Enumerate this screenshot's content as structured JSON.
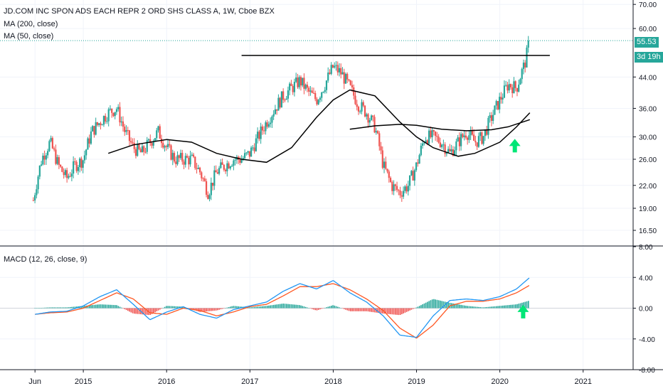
{
  "header": {
    "symbol_line": "JD.COM INC SPON ADS EACH REPR 2 ORD SHS CLASS A, 1W, Cboe BZX",
    "ma200_label": "MA (200, close)",
    "ma50_label": "MA (50, close)",
    "macd_label": "MACD (12, 26, close, 9)"
  },
  "price_tags": {
    "last_price": "55.53",
    "countdown": "3d 19h"
  },
  "colors": {
    "up": "#26a69a",
    "down": "#ef5350",
    "macd_line": "#2196f3",
    "signal_line": "#ff5722",
    "ma": "#000000",
    "arrow": "#00e676",
    "grid": "#f0f3fa",
    "axis": "#131722",
    "dotted": "#26a69a"
  },
  "icons": [
    "up-arrow-icon"
  ],
  "chart_data": [
    {
      "type": "line",
      "panel": "price",
      "scale": "log",
      "ylim": [
        15,
        72
      ],
      "y_ticks": [
        "70.00",
        "60.00",
        "55.53",
        "44.00",
        "36.00",
        "30.00",
        "26.00",
        "22.00",
        "19.00",
        "16.50"
      ],
      "y_tick_values": [
        70,
        60,
        55.53,
        44,
        36,
        30,
        26,
        22,
        19,
        16.5
      ],
      "x_ticks": [
        "Jun",
        "2015",
        "2016",
        "2017",
        "2018",
        "2019",
        "2020",
        "2021"
      ],
      "x_tick_values": [
        2014.42,
        2015.0,
        2016.0,
        2017.0,
        2018.0,
        2019.0,
        2020.0,
        2021.0
      ],
      "xlim": [
        2014.0,
        2021.6
      ],
      "series": [
        {
          "name": "JD.COM INC SPON ADS EACH REPR 2 ORD SHS CLASS A, 1W, Cboe BZX",
          "style": "candles",
          "x": [
            2014.4,
            2014.5,
            2014.6,
            2014.7,
            2014.8,
            2014.9,
            2015.0,
            2015.1,
            2015.2,
            2015.3,
            2015.4,
            2015.5,
            2015.6,
            2015.7,
            2015.8,
            2015.9,
            2016.0,
            2016.1,
            2016.2,
            2016.3,
            2016.4,
            2016.5,
            2016.6,
            2016.7,
            2016.8,
            2016.9,
            2017.0,
            2017.1,
            2017.2,
            2017.3,
            2017.4,
            2017.5,
            2017.6,
            2017.7,
            2017.8,
            2017.9,
            2018.0,
            2018.1,
            2018.2,
            2018.3,
            2018.4,
            2018.5,
            2018.6,
            2018.7,
            2018.8,
            2018.9,
            2019.0,
            2019.1,
            2019.2,
            2019.3,
            2019.4,
            2019.5,
            2019.6,
            2019.7,
            2019.8,
            2019.9,
            2020.0,
            2020.1,
            2020.2,
            2020.3,
            2020.36
          ],
          "close": [
            20,
            26,
            29,
            25,
            23,
            25,
            26,
            31,
            33,
            35,
            36,
            31,
            28,
            27,
            29,
            31,
            28,
            26,
            26,
            26,
            24,
            21,
            24,
            25,
            26,
            26,
            27,
            30,
            33,
            36,
            39,
            41,
            43,
            40,
            38,
            42,
            47,
            45,
            41,
            37,
            35,
            32,
            25,
            22,
            21,
            22,
            25,
            30,
            30,
            29,
            27,
            29,
            31,
            29,
            30,
            34,
            38,
            42,
            41,
            48,
            55.53
          ]
        },
        {
          "name": "MA (200, close)",
          "x": [
            2015.3,
            2015.6,
            2016.0,
            2016.3,
            2016.6,
            2016.9,
            2017.2,
            2017.5,
            2017.8,
            2018.0,
            2018.2,
            2018.5,
            2018.8,
            2019.0,
            2019.2,
            2019.5,
            2019.7,
            2020.0,
            2020.2,
            2020.36
          ],
          "values": [
            27.0,
            28.5,
            29.5,
            29.0,
            27.0,
            26.0,
            25.5,
            28.0,
            34.0,
            38.0,
            40.5,
            39.0,
            33.0,
            30.0,
            28.0,
            26.5,
            27.0,
            29.0,
            32.0,
            35.0
          ]
        },
        {
          "name": "MA (50, close)",
          "x": [
            2018.2,
            2018.5,
            2018.8,
            2019.0,
            2019.3,
            2019.6,
            2019.9,
            2020.1,
            2020.36
          ],
          "values": [
            31.5,
            32.2,
            32.5,
            32.3,
            31.5,
            31.2,
            31.4,
            32.0,
            33.5
          ]
        },
        {
          "name": "Resistance",
          "x": [
            2016.9,
            2020.6
          ],
          "values": [
            50.5,
            50.5
          ]
        }
      ],
      "annotations": [
        {
          "type": "up-arrow",
          "x": 2020.18,
          "y": 28.3
        }
      ]
    },
    {
      "type": "line",
      "panel": "macd",
      "ylim": [
        -8,
        8
      ],
      "y_ticks": [
        "8.00",
        "4.00",
        "0.00",
        "-4.00",
        "-8.00"
      ],
      "y_tick_values": [
        8,
        4,
        0,
        -4,
        -8
      ],
      "x": [
        2014.42,
        2014.6,
        2014.8,
        2015.0,
        2015.2,
        2015.4,
        2015.6,
        2015.8,
        2016.0,
        2016.2,
        2016.4,
        2016.6,
        2016.8,
        2017.0,
        2017.2,
        2017.4,
        2017.6,
        2017.8,
        2018.0,
        2018.2,
        2018.4,
        2018.6,
        2018.8,
        2019.0,
        2019.2,
        2019.4,
        2019.6,
        2019.8,
        2020.0,
        2020.2,
        2020.36
      ],
      "series": [
        {
          "name": "MACD",
          "values": [
            -0.8,
            -0.5,
            -0.4,
            0.3,
            1.5,
            2.4,
            0.5,
            -1.5,
            -0.5,
            0.2,
            -0.8,
            -1.3,
            -0.2,
            0.3,
            0.8,
            2.2,
            3.2,
            2.5,
            3.6,
            2.0,
            0.8,
            -1.0,
            -3.5,
            -3.8,
            -1.0,
            1.0,
            1.2,
            1.0,
            1.5,
            2.5,
            4.0
          ]
        },
        {
          "name": "Signal",
          "values": [
            -0.8,
            -0.6,
            -0.5,
            0.0,
            1.0,
            2.0,
            1.2,
            -0.6,
            -0.8,
            0.0,
            -0.3,
            -1.0,
            -0.5,
            0.2,
            0.5,
            1.6,
            2.8,
            2.8,
            3.2,
            2.4,
            1.2,
            -0.3,
            -2.6,
            -3.9,
            -2.2,
            0.3,
            0.9,
            0.9,
            1.2,
            2.0,
            3.0
          ]
        }
      ],
      "annotations": [
        {
          "type": "up-arrow",
          "x": 2020.28,
          "y": -0.5
        }
      ]
    }
  ]
}
